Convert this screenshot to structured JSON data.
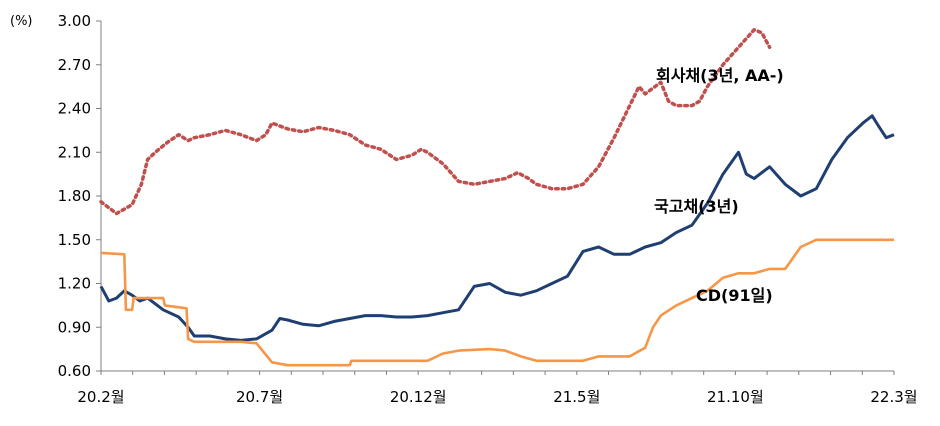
{
  "chart_data": {
    "type": "line",
    "unit": "(%)",
    "ylim": [
      0.6,
      3.0
    ],
    "yticks": [
      "0.60",
      "0.90",
      "1.20",
      "1.50",
      "1.80",
      "2.10",
      "2.40",
      "2.70",
      "3.00"
    ],
    "xlabels": [
      "20.2월",
      "20.7월",
      "20.12월",
      "21.5월",
      "21.10월",
      "22.3월"
    ],
    "grid": false,
    "series": [
      {
        "name": "회사채(3년, AA-)",
        "color": "#c0504d",
        "style": "dotted",
        "points": [
          [
            0.0,
            1.76
          ],
          [
            1.0,
            1.68
          ],
          [
            2.0,
            1.74
          ],
          [
            2.6,
            1.88
          ],
          [
            3.0,
            2.05
          ],
          [
            3.6,
            2.11
          ],
          [
            4.3,
            2.17
          ],
          [
            5.0,
            2.22
          ],
          [
            5.6,
            2.18
          ],
          [
            6.0,
            2.2
          ],
          [
            7.0,
            2.22
          ],
          [
            8.0,
            2.25
          ],
          [
            9.0,
            2.22
          ],
          [
            10.0,
            2.18
          ],
          [
            10.6,
            2.22
          ],
          [
            11.0,
            2.3
          ],
          [
            12.0,
            2.26
          ],
          [
            13.0,
            2.24
          ],
          [
            14.0,
            2.27
          ],
          [
            15.0,
            2.25
          ],
          [
            16.0,
            2.22
          ],
          [
            17.0,
            2.15
          ],
          [
            18.0,
            2.12
          ],
          [
            19.0,
            2.05
          ],
          [
            20.0,
            2.08
          ],
          [
            20.6,
            2.12
          ],
          [
            21.0,
            2.1
          ],
          [
            22.0,
            2.02
          ],
          [
            23.0,
            1.9
          ],
          [
            24.0,
            1.88
          ],
          [
            25.0,
            1.9
          ],
          [
            26.0,
            1.92
          ],
          [
            26.8,
            1.96
          ],
          [
            27.5,
            1.92
          ],
          [
            28.0,
            1.88
          ],
          [
            29.0,
            1.85
          ],
          [
            30.0,
            1.85
          ],
          [
            31.0,
            1.88
          ],
          [
            32.0,
            2.0
          ],
          [
            33.0,
            2.2
          ],
          [
            34.0,
            2.42
          ],
          [
            34.6,
            2.55
          ],
          [
            35.0,
            2.5
          ],
          [
            36.0,
            2.58
          ],
          [
            36.5,
            2.45
          ],
          [
            37.0,
            2.42
          ],
          [
            38.0,
            2.42
          ],
          [
            38.5,
            2.45
          ],
          [
            39.0,
            2.55
          ],
          [
            40.0,
            2.7
          ],
          [
            41.0,
            2.82
          ],
          [
            42.0,
            2.94
          ],
          [
            42.5,
            2.92
          ],
          [
            43.0,
            2.82
          ]
        ]
      },
      {
        "name": "국고채(3년)",
        "color": "#1f3f73",
        "style": "solid",
        "points": [
          [
            0.0,
            1.18
          ],
          [
            0.5,
            1.08
          ],
          [
            1.0,
            1.1
          ],
          [
            1.5,
            1.15
          ],
          [
            2.0,
            1.12
          ],
          [
            2.5,
            1.08
          ],
          [
            3.0,
            1.1
          ],
          [
            4.0,
            1.02
          ],
          [
            5.0,
            0.97
          ],
          [
            5.6,
            0.9
          ],
          [
            6.0,
            0.84
          ],
          [
            7.0,
            0.84
          ],
          [
            8.0,
            0.82
          ],
          [
            9.0,
            0.81
          ],
          [
            10.0,
            0.82
          ],
          [
            11.0,
            0.88
          ],
          [
            11.5,
            0.96
          ],
          [
            12.0,
            0.95
          ],
          [
            13.0,
            0.92
          ],
          [
            14.0,
            0.91
          ],
          [
            15.0,
            0.94
          ],
          [
            16.0,
            0.96
          ],
          [
            17.0,
            0.98
          ],
          [
            18.0,
            0.98
          ],
          [
            19.0,
            0.97
          ],
          [
            20.0,
            0.97
          ],
          [
            21.0,
            0.98
          ],
          [
            22.0,
            1.0
          ],
          [
            23.0,
            1.02
          ],
          [
            24.0,
            1.18
          ],
          [
            25.0,
            1.2
          ],
          [
            26.0,
            1.14
          ],
          [
            27.0,
            1.12
          ],
          [
            28.0,
            1.15
          ],
          [
            29.0,
            1.2
          ],
          [
            30.0,
            1.25
          ],
          [
            31.0,
            1.42
          ],
          [
            32.0,
            1.45
          ],
          [
            33.0,
            1.4
          ],
          [
            34.0,
            1.4
          ],
          [
            35.0,
            1.45
          ],
          [
            36.0,
            1.48
          ],
          [
            37.0,
            1.55
          ],
          [
            38.0,
            1.6
          ],
          [
            39.0,
            1.75
          ],
          [
            40.0,
            1.95
          ],
          [
            41.0,
            2.1
          ],
          [
            41.5,
            1.95
          ],
          [
            42.0,
            1.92
          ],
          [
            43.0,
            2.0
          ],
          [
            44.0,
            1.88
          ],
          [
            45.0,
            1.8
          ],
          [
            46.0,
            1.85
          ],
          [
            47.0,
            2.05
          ],
          [
            48.0,
            2.2
          ],
          [
            49.0,
            2.3
          ],
          [
            49.6,
            2.35
          ],
          [
            50.0,
            2.28
          ],
          [
            50.5,
            2.2
          ],
          [
            51.0,
            2.22
          ]
        ]
      },
      {
        "name": "CD(91일)",
        "color": "#f79646",
        "style": "solid",
        "points": [
          [
            0.0,
            1.41
          ],
          [
            1.5,
            1.4
          ],
          [
            1.6,
            1.02
          ],
          [
            2.0,
            1.02
          ],
          [
            2.1,
            1.1
          ],
          [
            4.0,
            1.1
          ],
          [
            4.1,
            1.05
          ],
          [
            5.5,
            1.03
          ],
          [
            5.6,
            0.82
          ],
          [
            6.0,
            0.8
          ],
          [
            9.0,
            0.8
          ],
          [
            10.0,
            0.79
          ],
          [
            11.0,
            0.66
          ],
          [
            12.0,
            0.64
          ],
          [
            16.0,
            0.64
          ],
          [
            16.1,
            0.67
          ],
          [
            21.0,
            0.67
          ],
          [
            22.0,
            0.72
          ],
          [
            23.0,
            0.74
          ],
          [
            25.0,
            0.75
          ],
          [
            26.0,
            0.74
          ],
          [
            27.0,
            0.7
          ],
          [
            28.0,
            0.67
          ],
          [
            31.0,
            0.67
          ],
          [
            32.0,
            0.7
          ],
          [
            34.0,
            0.7
          ],
          [
            35.0,
            0.76
          ],
          [
            35.5,
            0.9
          ],
          [
            36.0,
            0.98
          ],
          [
            37.0,
            1.05
          ],
          [
            38.0,
            1.1
          ],
          [
            39.0,
            1.15
          ],
          [
            40.0,
            1.24
          ],
          [
            41.0,
            1.27
          ],
          [
            42.0,
            1.27
          ],
          [
            43.0,
            1.3
          ],
          [
            44.0,
            1.3
          ],
          [
            45.0,
            1.45
          ],
          [
            46.0,
            1.5
          ],
          [
            51.0,
            1.5
          ]
        ]
      }
    ],
    "labels": [
      "회사채(3년, AA-)",
      "국고채(3년)",
      "CD(91일)"
    ]
  }
}
